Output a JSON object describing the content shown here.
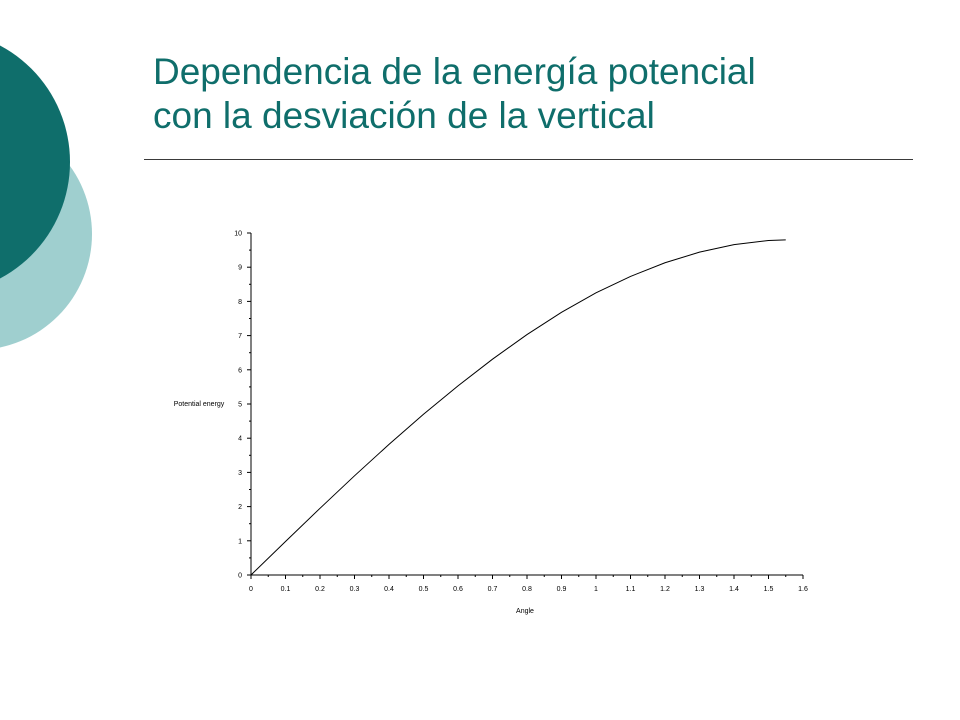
{
  "slide": {
    "title_line_1": "Dependencia de la energía potencial",
    "title_line_2": "con la desviación de la vertical"
  },
  "colors": {
    "title": "#0f6e6b",
    "deco_dark": "#0f6e6b",
    "deco_light": "#9fcfcf",
    "curve": "#000000"
  },
  "chart_data": {
    "type": "line",
    "xlabel": "Angle",
    "ylabel": "Potential energy",
    "xlim": [
      0,
      1.6
    ],
    "ylim": [
      0,
      10
    ],
    "x_ticks": [
      "0",
      "0.1",
      "0.2",
      "0.3",
      "0.4",
      "0.5",
      "0.6",
      "0.7",
      "0.8",
      "0.9",
      "1",
      "1.1",
      "1.2",
      "1.3",
      "1.4",
      "1.5",
      "1.6"
    ],
    "y_ticks": [
      "0",
      "1",
      "2",
      "3",
      "4",
      "5",
      "6",
      "7",
      "8",
      "9",
      "10"
    ],
    "grid": false,
    "series": [
      {
        "x": [
          0,
          0.1,
          0.2,
          0.3,
          0.4,
          0.5,
          0.6,
          0.7,
          0.8,
          0.9,
          1.0,
          1.1,
          1.2,
          1.3,
          1.4,
          1.5,
          1.55
        ],
        "values": [
          0,
          0.98,
          1.95,
          2.9,
          3.82,
          4.7,
          5.53,
          6.31,
          7.03,
          7.68,
          8.25,
          8.73,
          9.13,
          9.44,
          9.66,
          9.78,
          9.8
        ]
      }
    ]
  }
}
